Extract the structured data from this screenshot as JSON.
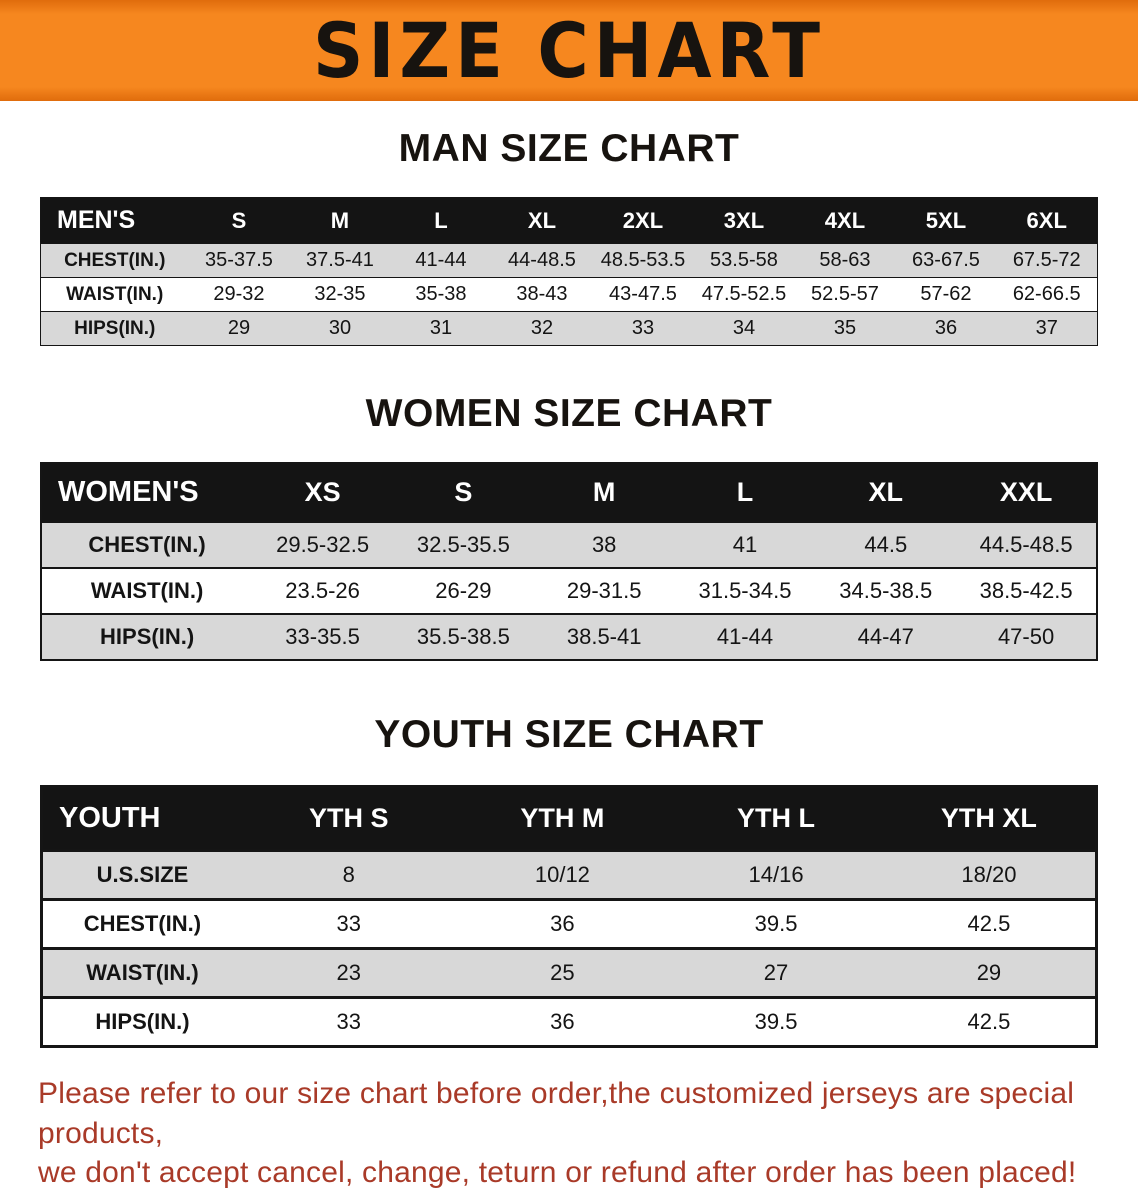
{
  "banner": {
    "title": "SIZE CHART"
  },
  "colors": {
    "banner_orange": "#f6871f",
    "banner_orange_dark": "#e06c0c",
    "table_header_black": "#141414",
    "row_gray": "#d8d8d8",
    "row_white": "#ffffff",
    "disclaimer_red": "#a93a28",
    "title_black": "#17130f"
  },
  "sections": [
    {
      "heading": "MAN SIZE CHART",
      "table": {
        "header": [
          "MEN'S",
          "S",
          "M",
          "L",
          "XL",
          "2XL",
          "3XL",
          "4XL",
          "5XL",
          "6XL"
        ],
        "rows": [
          [
            "CHEST(IN.)",
            "35-37.5",
            "37.5-41",
            "41-44",
            "44-48.5",
            "48.5-53.5",
            "53.5-58",
            "58-63",
            "63-67.5",
            "67.5-72"
          ],
          [
            "WAIST(IN.)",
            "29-32",
            "32-35",
            "35-38",
            "38-43",
            "43-47.5",
            "47.5-52.5",
            "52.5-57",
            "57-62",
            "62-66.5"
          ],
          [
            "HIPS(IN.)",
            "29",
            "30",
            "31",
            "32",
            "33",
            "34",
            "35",
            "36",
            "37"
          ]
        ]
      }
    },
    {
      "heading": "WOMEN SIZE CHART",
      "table": {
        "header": [
          "WOMEN'S",
          "XS",
          "S",
          "M",
          "L",
          "XL",
          "XXL"
        ],
        "rows": [
          [
            "CHEST(IN.)",
            "29.5-32.5",
            "32.5-35.5",
            "38",
            "41",
            "44.5",
            "44.5-48.5"
          ],
          [
            "WAIST(IN.)",
            "23.5-26",
            "26-29",
            "29-31.5",
            "31.5-34.5",
            "34.5-38.5",
            "38.5-42.5"
          ],
          [
            "HIPS(IN.)",
            "33-35.5",
            "35.5-38.5",
            "38.5-41",
            "41-44",
            "44-47",
            "47-50"
          ]
        ]
      }
    },
    {
      "heading": "YOUTH SIZE CHART",
      "table": {
        "header": [
          "YOUTH",
          "YTH S",
          "YTH M",
          "YTH L",
          "YTH XL"
        ],
        "rows": [
          [
            "U.S.SIZE",
            "8",
            "10/12",
            "14/16",
            "18/20"
          ],
          [
            "CHEST(IN.)",
            "33",
            "36",
            "39.5",
            "42.5"
          ],
          [
            "WAIST(IN.)",
            "23",
            "25",
            "27",
            "29"
          ],
          [
            "HIPS(IN.)",
            "33",
            "36",
            "39.5",
            "42.5"
          ]
        ]
      }
    }
  ],
  "disclaimer": {
    "line1": "Please refer to our size chart before order,the customized jerseys are special products,",
    "line2": "we don't accept cancel, change, teturn or refund after order has been placed!"
  }
}
